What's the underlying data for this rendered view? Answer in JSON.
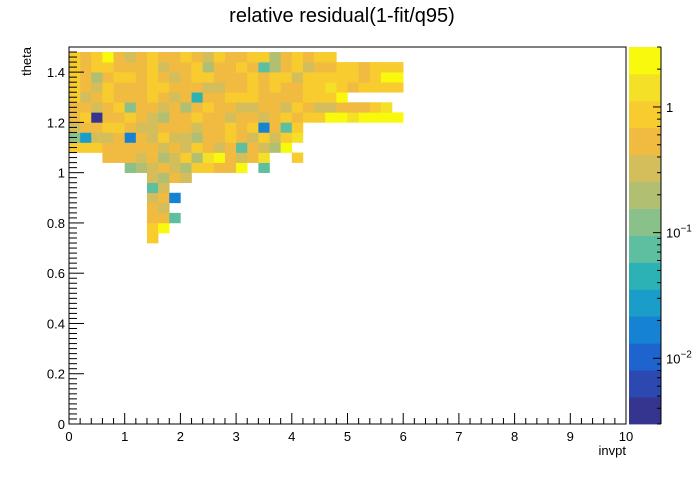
{
  "chart_data": {
    "type": "heatmap",
    "title": "relative residual(1-fit/q95)",
    "xlabel": "invpt",
    "ylabel": "theta",
    "xlim": [
      0,
      10
    ],
    "ylim": [
      0,
      1.5
    ],
    "x_ticks": [
      "0",
      "1",
      "2",
      "3",
      "4",
      "5",
      "6",
      "7",
      "8",
      "9",
      "10"
    ],
    "y_ticks": [
      "0",
      "0.2",
      "0.4",
      "0.6",
      "0.8",
      "1",
      "1.2",
      "1.4"
    ],
    "x_tick_values": [
      0,
      1,
      2,
      3,
      4,
      5,
      6,
      7,
      8,
      9,
      10
    ],
    "y_tick_values": [
      0,
      0.2,
      0.4,
      0.6,
      0.8,
      1.0,
      1.2,
      1.4
    ],
    "bin_width_x": 0.2,
    "bin_height_y": 0.04,
    "z_scale": "log",
    "zlim": [
      0.003,
      3
    ],
    "colorbar_labels": [
      "1",
      "10^-1",
      "10^-2"
    ],
    "colorbar_label_values": [
      1,
      0.1,
      0.01
    ],
    "grid": false,
    "palette": [
      "#35348f",
      "#2c49b2",
      "#1f63cf",
      "#1682d3",
      "#1a9dc8",
      "#2cb2b4",
      "#5dbea0",
      "#8ac08a",
      "#b0bf72",
      "#d3be5b",
      "#f0bb40",
      "#f8cc2e",
      "#f5e028",
      "#f9f90e"
    ],
    "rows": [
      {
        "y": 0.72,
        "x0": 1.4,
        "z": [
          0.8
        ]
      },
      {
        "y": 0.76,
        "x0": 1.4,
        "z": [
          0.8,
          2.5
        ]
      },
      {
        "y": 0.8,
        "x0": 1.4,
        "z": [
          0.5,
          0.5,
          0.07
        ]
      },
      {
        "y": 0.84,
        "x0": 1.4,
        "z": [
          0.5,
          0.4
        ]
      },
      {
        "y": 0.88,
        "x0": 1.4,
        "z": [
          0.4,
          0.5,
          0.02
        ]
      },
      {
        "y": 0.92,
        "x0": 1.4,
        "z": [
          0.08,
          0.4
        ]
      },
      {
        "y": 0.96,
        "x0": 1.4,
        "z": [
          0.3,
          0.2,
          0.6,
          0.4
        ]
      },
      {
        "y": 1.0,
        "x0": 1.0,
        "z": [
          0.1,
          0.2,
          0.3,
          0.5,
          0.3,
          0.2,
          0.7,
          1.0,
          0.6,
          0.5,
          2.5,
          null,
          0.09
        ]
      },
      {
        "y": 1.04,
        "x0": 0.6,
        "z": [
          0.6,
          0.5,
          0.5,
          0.4,
          0.5,
          0.25,
          0.3,
          0.8,
          0.2,
          1.2,
          2.5,
          0.5,
          0.4,
          0.6,
          1.5,
          null,
          null,
          0.8
        ]
      },
      {
        "y": 1.08,
        "x0": 0.0,
        "z": [
          0.7,
          0.8,
          1.0,
          0.5,
          0.6,
          0.5,
          0.5,
          0.6,
          0.4,
          0.5,
          0.3,
          0.7,
          0.5,
          0.4,
          0.6,
          0.08,
          0.6,
          0.4,
          0.2,
          2.5
        ]
      },
      {
        "y": 1.12,
        "x0": 0.0,
        "z": [
          0.1,
          0.03,
          0.4,
          0.3,
          0.6,
          0.02,
          0.6,
          0.4,
          0.7,
          0.3,
          0.4,
          0.2,
          0.5,
          0.6,
          0.8,
          0.5,
          0.3,
          0.8,
          0.4,
          0.8,
          1.5
        ]
      },
      {
        "y": 1.16,
        "x0": 0.0,
        "z": [
          0.4,
          0.6,
          0.5,
          0.7,
          0.8,
          0.5,
          0.4,
          0.3,
          0.5,
          0.6,
          0.6,
          0.4,
          0.5,
          0.6,
          0.8,
          0.5,
          0.7,
          0.02,
          0.6,
          0.08,
          0.8
        ]
      },
      {
        "y": 1.2,
        "x0": 0.0,
        "z": [
          0.5,
          0.7,
          0.004,
          0.6,
          0.5,
          0.8,
          0.5,
          0.4,
          0.2,
          0.6,
          0.6,
          0.8,
          0.5,
          0.6,
          0.4,
          0.5,
          0.6,
          0.4,
          0.5,
          0.8,
          0.6,
          0.7,
          0.8,
          2.5,
          2.5,
          1.5,
          2.5,
          2.5,
          2.5,
          2.5
        ]
      },
      {
        "y": 1.24,
        "x0": 0.0,
        "z": [
          0.6,
          0.5,
          0.3,
          0.6,
          0.8,
          0.1,
          0.6,
          0.5,
          0.4,
          0.6,
          0.2,
          0.5,
          0.8,
          0.6,
          0.5,
          0.4,
          0.3,
          0.5,
          0.6,
          0.4,
          0.8,
          0.6,
          0.3,
          0.4,
          0.6,
          0.5,
          0.6,
          0.8,
          1.5
        ]
      },
      {
        "y": 1.28,
        "x0": 0.0,
        "z": [
          0.8,
          0.3,
          0.6,
          0.7,
          0.6,
          0.5,
          0.6,
          0.8,
          0.6,
          0.4,
          0.6,
          0.05,
          0.6,
          0.6,
          0.7,
          0.8,
          0.8,
          0.5,
          0.6,
          0.5,
          0.6,
          0.8,
          0.8,
          0.8,
          2.5
        ]
      },
      {
        "y": 1.32,
        "x0": 0.0,
        "z": [
          0.7,
          0.6,
          0.4,
          0.8,
          0.6,
          0.5,
          0.6,
          0.7,
          0.8,
          0.6,
          0.5,
          0.6,
          0.4,
          0.3,
          0.6,
          0.5,
          0.8,
          0.6,
          0.7,
          0.6,
          0.5,
          0.8,
          0.8,
          1.5,
          0.8,
          0.6,
          0.8,
          0.8,
          0.8,
          0.8
        ]
      },
      {
        "y": 1.36,
        "x0": 0.0,
        "z": [
          0.8,
          0.6,
          0.2,
          0.6,
          0.7,
          0.8,
          0.5,
          0.8,
          0.6,
          0.4,
          0.6,
          0.8,
          0.7,
          0.5,
          0.5,
          0.6,
          0.8,
          0.6,
          0.7,
          0.8,
          0.4,
          0.8,
          0.8,
          0.8,
          0.8,
          0.8,
          0.6,
          0.8,
          2.5,
          2.5
        ]
      },
      {
        "y": 1.4,
        "x0": 0.0,
        "z": [
          0.8,
          0.6,
          0.8,
          0.7,
          0.6,
          0.5,
          0.6,
          0.8,
          0.4,
          0.5,
          0.6,
          0.8,
          0.2,
          0.6,
          0.5,
          0.8,
          0.6,
          0.08,
          0.2,
          0.6,
          0.8,
          0.3,
          0.6,
          0.6,
          0.8,
          0.8,
          0.6,
          0.8,
          0.8,
          0.8
        ]
      },
      {
        "y": 1.44,
        "x0": 0.0,
        "z": [
          0.8,
          0.6,
          0.8,
          2.5,
          0.5,
          0.4,
          0.5,
          0.8,
          0.6,
          0.6,
          0.8,
          0.6,
          0.3,
          0.8,
          0.5,
          0.6,
          0.7,
          0.8,
          0.2,
          0.6,
          0.8,
          0.6,
          0.8,
          0.8
        ]
      }
    ]
  }
}
